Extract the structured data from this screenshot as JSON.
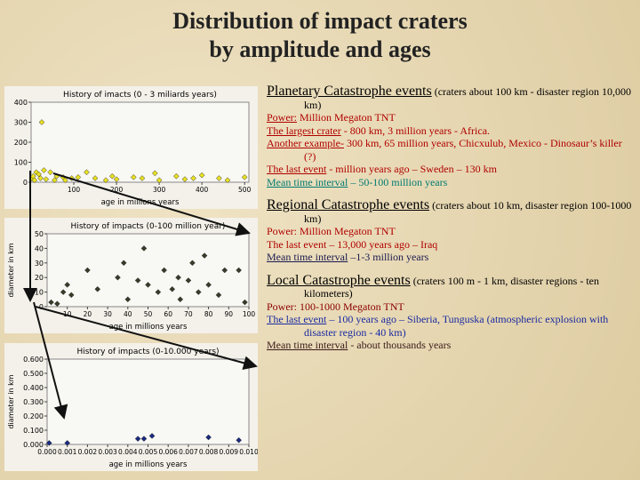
{
  "title": [
    "Distribution of impact craters",
    "by amplitude and ages"
  ],
  "charts": [
    {
      "type": "scatter",
      "title": "History of imacts (0 - 3 miliards years)",
      "xlabel": "age in millions years",
      "ylabel": null,
      "color": "#e8e020",
      "x": [
        2,
        5,
        8,
        12,
        18,
        22,
        25,
        30,
        35,
        45,
        55,
        60,
        75,
        80,
        95,
        110,
        130,
        150,
        175,
        190,
        200,
        240,
        260,
        290,
        300,
        340,
        360,
        380,
        400,
        440,
        460,
        500
      ],
      "y": [
        20,
        30,
        10,
        50,
        40,
        20,
        300,
        60,
        15,
        50,
        10,
        30,
        25,
        10,
        20,
        25,
        50,
        20,
        10,
        30,
        15,
        25,
        20,
        45,
        10,
        30,
        15,
        20,
        35,
        20,
        10,
        25
      ],
      "xlim": [
        0,
        510
      ],
      "xticks": [
        100,
        200,
        300,
        400,
        500
      ],
      "ylim": [
        0,
        400
      ],
      "yticks": [
        0,
        100,
        200,
        300,
        400
      ]
    },
    {
      "type": "scatter",
      "title": "History of impacts (0-100 million year)",
      "xlabel": "age in millions years",
      "ylabel": "diameter in km",
      "color": "#3a3a2a",
      "x": [
        2,
        5,
        8,
        10,
        12,
        20,
        25,
        35,
        38,
        40,
        45,
        48,
        50,
        55,
        58,
        62,
        65,
        66,
        70,
        72,
        75,
        78,
        80,
        85,
        88,
        95,
        98
      ],
      "y": [
        3,
        2,
        10,
        15,
        8,
        25,
        12,
        20,
        30,
        5,
        18,
        40,
        15,
        10,
        25,
        12,
        20,
        5,
        18,
        30,
        10,
        35,
        15,
        8,
        25,
        25,
        3
      ],
      "xlim": [
        0,
        100
      ],
      "xticks": [
        10,
        20,
        30,
        40,
        50,
        60,
        70,
        80,
        90,
        100
      ],
      "ylim": [
        0,
        50
      ],
      "yticks": [
        0,
        10,
        20,
        30,
        40,
        50
      ]
    },
    {
      "type": "scatter",
      "title": "History of impacts (0-10.000 years)",
      "xlabel": "age in millions years",
      "ylabel": "diameter in km",
      "color": "#1a2a80",
      "x": [
        0.0001,
        0.001,
        0.0045,
        0.0048,
        0.0052,
        0.008,
        0.0095
      ],
      "y": [
        0.01,
        0.01,
        0.04,
        0.04,
        0.06,
        0.05,
        0.03
      ],
      "xlim": [
        0,
        0.01
      ],
      "xticks": [
        {
          "value": 0,
          "label": "0.000"
        },
        {
          "value": 0.001,
          "label": "0.001"
        },
        {
          "value": 0.002,
          "label": "0.002"
        },
        {
          "value": 0.003,
          "label": "0.003"
        },
        {
          "value": 0.004,
          "label": "0.004"
        },
        {
          "value": 0.005,
          "label": "0.005"
        },
        {
          "value": 0.006,
          "label": "0.006"
        },
        {
          "value": 0.007,
          "label": "0.007"
        },
        {
          "value": 0.008,
          "label": "0.008"
        },
        {
          "value": 0.009,
          "label": "0.009"
        },
        {
          "value": 0.01,
          "label": "0.010"
        }
      ],
      "ylim": [
        0,
        0.6
      ],
      "yticks": [
        {
          "value": 0,
          "label": "0.000"
        },
        {
          "value": 0.1,
          "label": "0.100"
        },
        {
          "value": 0.2,
          "label": "0.200"
        },
        {
          "value": 0.3,
          "label": "0.300"
        },
        {
          "value": 0.4,
          "label": "0.400"
        },
        {
          "value": 0.5,
          "label": "0.500"
        },
        {
          "value": 0.6,
          "label": "0.600"
        }
      ]
    }
  ],
  "sections": [
    {
      "heading": "Planetary Catastrophe events",
      "note": "(craters about 100  km - disaster region 10,000 km)",
      "lines": [
        {
          "label": "Power:",
          "text": "Million Megaton TNT",
          "color": "#b00000"
        },
        {
          "label": "The largest crater",
          "text": "- 800 km, 3 million years - Africa.",
          "color": "#b00000"
        },
        {
          "label": "Another example-",
          "text": "300 km, 65 million years, Chicxulub, Mexico - Dinosaur’s killer (?)",
          "color": "#b00000"
        },
        {
          "label": "The last event",
          "text": "- million years ago – Sweden – 130 km",
          "color": "#b00000"
        },
        {
          "label": "Mean time interval",
          "text": "– 50-100 million years",
          "color": "#007a70"
        }
      ]
    },
    {
      "heading": "Regional Catastrophe events",
      "note": "(craters about 10 km, disaster region 100-1000 km)",
      "lines": [
        {
          "label": null,
          "text": "Power: Million Megaton TNT",
          "color": "#b00000"
        },
        {
          "label": null,
          "text": "The last event – 13,000 years ago – Iraq",
          "color": "#b00000"
        },
        {
          "label": "Mean time interval",
          "text": "–1-3 million years",
          "color": "#1a1a50"
        }
      ]
    },
    {
      "heading": "Local Catastrophe events",
      "note": "(craters 100 m - 1 km, disaster regions - ten kilometers)",
      "lines": [
        {
          "label": null,
          "text": "Power: 100-1000 Megaton TNT",
          "color": "#8a0000"
        },
        {
          "label": "The last event",
          "text": "– 100 years ago – Siberia, Tunguska (atmospheric explosion with disaster region - 40 km)",
          "color": "#1a2aa0"
        },
        {
          "label": "Mean time interval",
          "text": "- about thousands years",
          "color": "#3a1a1a"
        }
      ]
    }
  ]
}
